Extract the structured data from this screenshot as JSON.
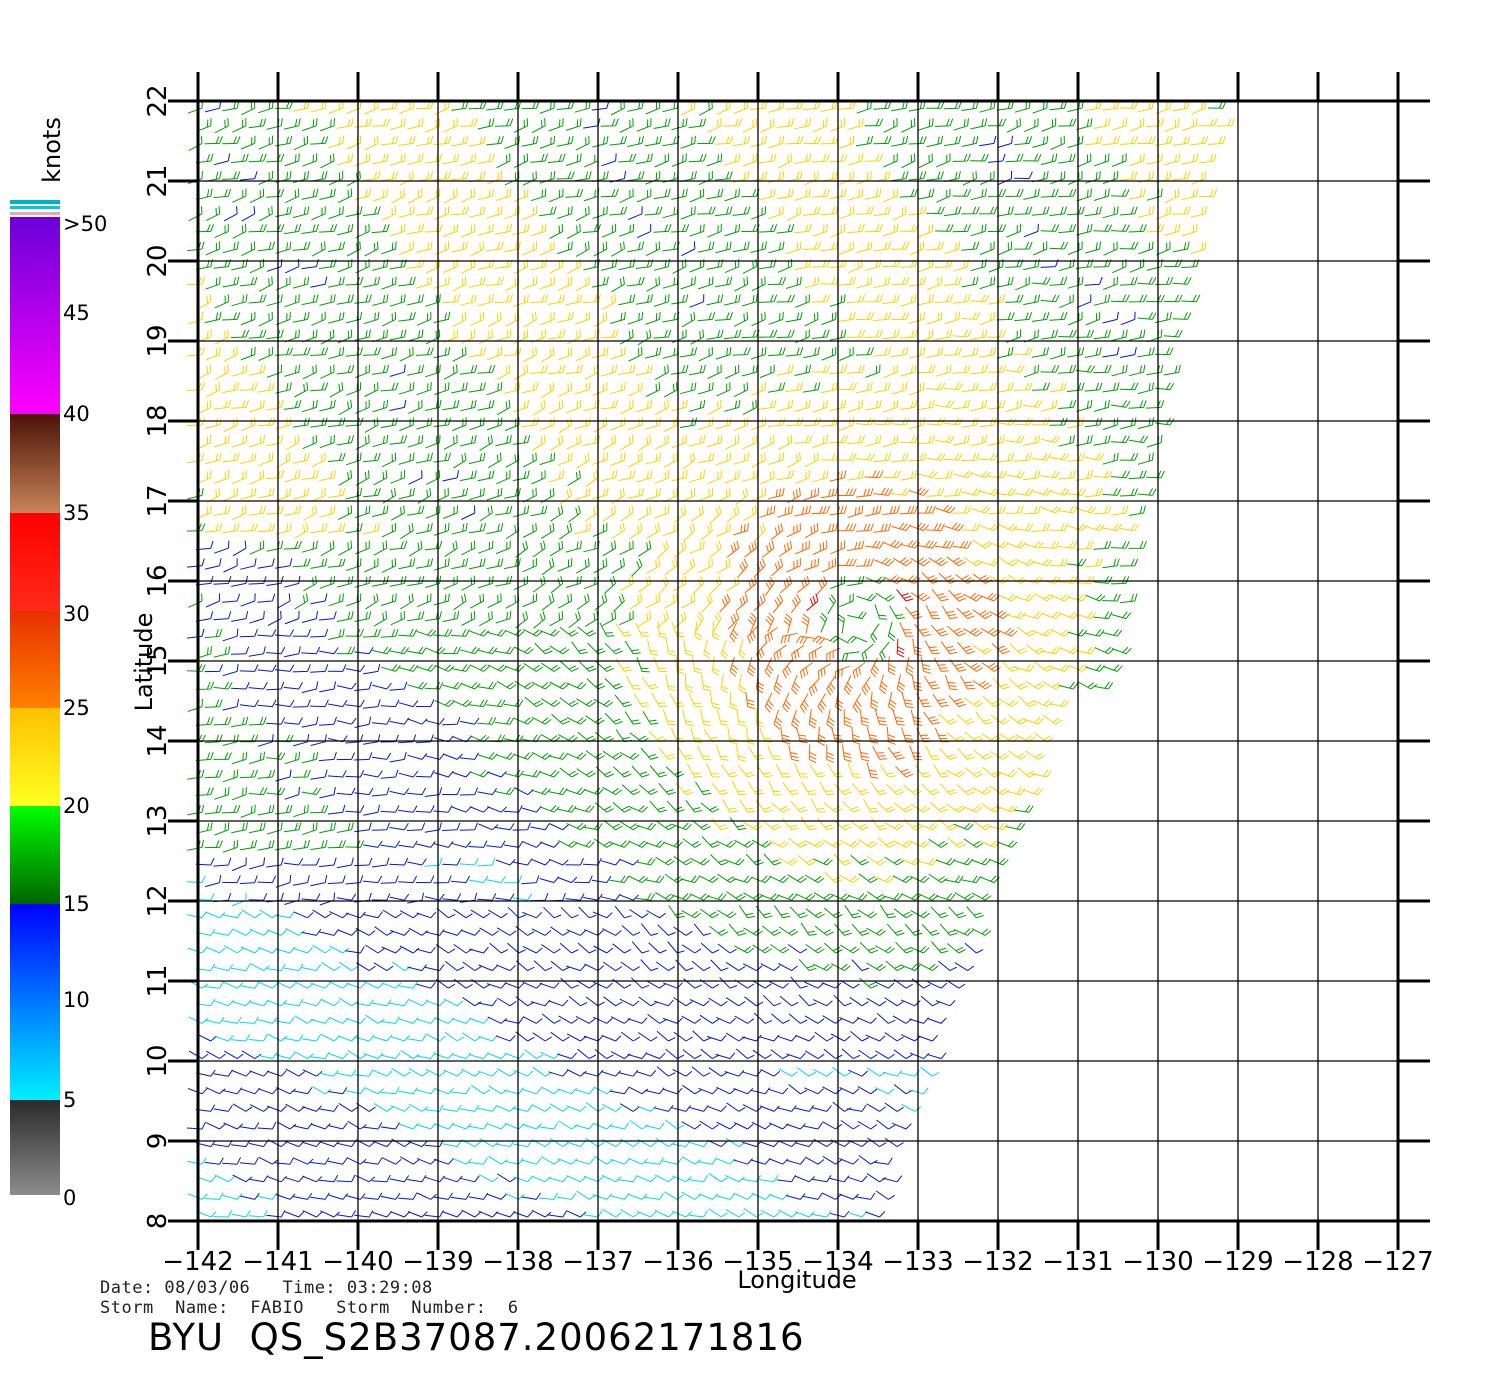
{
  "map": {
    "lon_ticks": [
      "−142",
      "−141",
      "−140",
      "−139",
      "−138",
      "−137",
      "−136",
      "−135",
      "−134",
      "−133",
      "−132",
      "−131",
      "−130",
      "−129",
      "−128",
      "−127"
    ],
    "lat_ticks": [
      "8",
      "9",
      "10",
      "11",
      "12",
      "13",
      "14",
      "15",
      "16",
      "17",
      "18",
      "19",
      "20",
      "21",
      "22"
    ],
    "lon_range": [
      -142,
      -127
    ],
    "lat_range": [
      8,
      22
    ],
    "xlabel": "Longitude",
    "ylabel": "Latitude",
    "storm_center": {
      "lon": -133.7,
      "lat": 15.5
    }
  },
  "colorbar": {
    "units": "knots",
    "labels": [
      ">50",
      "45",
      "40",
      "35",
      "30",
      "25",
      "20",
      "15",
      "10",
      "5",
      "0"
    ],
    "colors": {
      "calm": "#333333",
      "light": "#00d8f0",
      "moderate": "#0018d8",
      "fresh": "#00a000",
      "strong": "#ffd000",
      "gale": "#ff6600",
      "storm": "#e00000"
    }
  },
  "footer": {
    "line1": "Date: 08/03/06   Time: 03:29:08",
    "line2": "Storm  Name:  FABIO   Storm  Number:  6",
    "title": "BYU  QS_S2B37087.20062171816"
  }
}
